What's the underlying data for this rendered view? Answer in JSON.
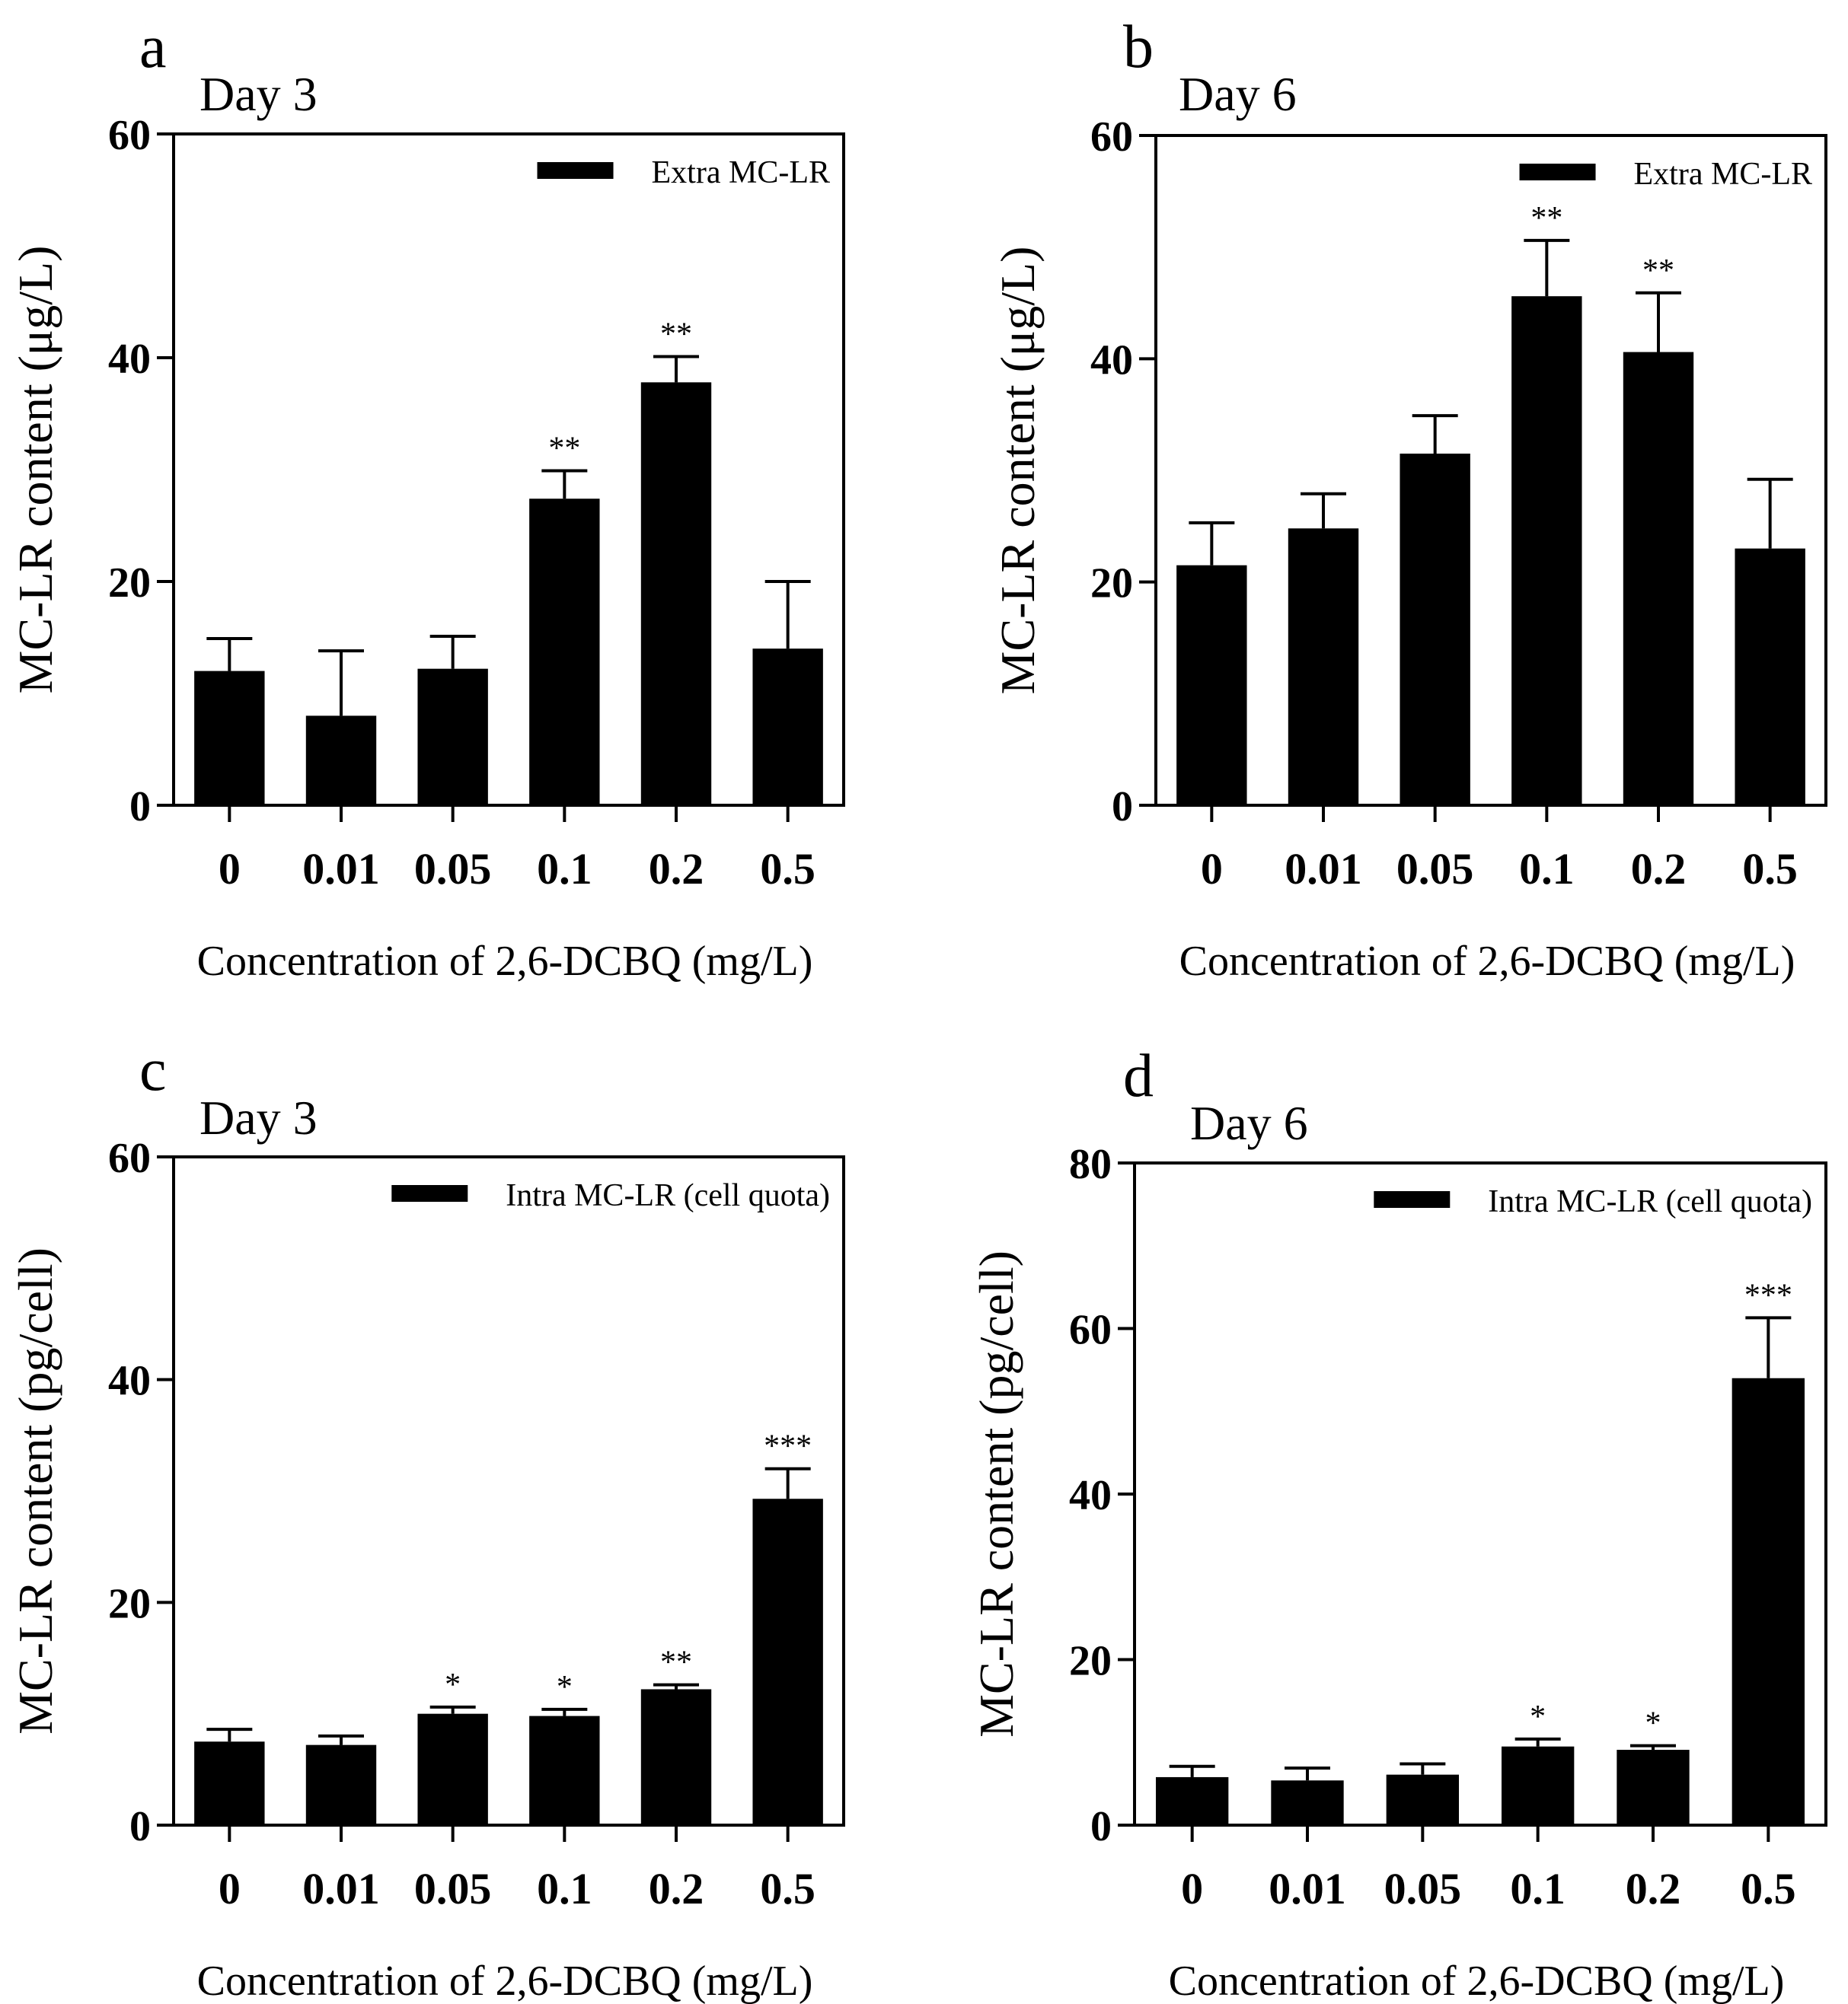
{
  "chart_data": [
    {
      "panel": "a",
      "type": "bar",
      "title": "Day 3",
      "xlabel": "Concentration of 2,6-DCBQ (mg/L)",
      "ylabel": "MC-LR content (μg/L)",
      "categories": [
        "0",
        "0.01",
        "0.05",
        "0.1",
        "0.2",
        "0.5"
      ],
      "series": [
        {
          "name": "Extra MC-LR",
          "values": [
            12,
            8,
            12.2,
            27.4,
            37.8,
            14
          ],
          "errors": [
            2.9,
            5.8,
            2.9,
            2.5,
            2.3,
            6
          ]
        }
      ],
      "significance": [
        "",
        "",
        "",
        "**",
        "**",
        ""
      ],
      "ylim": [
        0,
        60
      ],
      "yticks": [
        "0",
        "20",
        "40",
        "60"
      ],
      "legend_position": "top-right"
    },
    {
      "panel": "b",
      "type": "bar",
      "title": "Day 6",
      "xlabel": "Concentration of 2,6-DCBQ (mg/L)",
      "ylabel": "MC-LR content (μg/L)",
      "categories": [
        "0",
        "0.01",
        "0.05",
        "0.1",
        "0.2",
        "0.5"
      ],
      "series": [
        {
          "name": "Extra MC-LR",
          "values": [
            21.5,
            24.8,
            31.5,
            45.6,
            40.6,
            23
          ],
          "errors": [
            3.8,
            3.1,
            3.4,
            5,
            5.3,
            6.2
          ]
        }
      ],
      "significance": [
        "",
        "",
        "",
        "**",
        "**",
        ""
      ],
      "ylim": [
        0,
        60
      ],
      "yticks": [
        "0",
        "20",
        "40",
        "60"
      ],
      "legend_position": "top-right"
    },
    {
      "panel": "c",
      "type": "bar",
      "title": "Day 3",
      "xlabel": "Concentration of 2,6-DCBQ (mg/L)",
      "ylabel": "MC-LR content (pg/cell)",
      "categories": [
        "0",
        "0.01",
        "0.05",
        "0.1",
        "0.2",
        "0.5"
      ],
      "series": [
        {
          "name": "Intra MC-LR (cell quota)",
          "values": [
            7.5,
            7.2,
            10,
            9.8,
            12.2,
            29.3
          ],
          "errors": [
            1.1,
            0.8,
            0.6,
            0.6,
            0.4,
            2.7
          ]
        }
      ],
      "significance": [
        "",
        "",
        "*",
        "*",
        "**",
        "***"
      ],
      "ylim": [
        0,
        60
      ],
      "yticks": [
        "0",
        "20",
        "40",
        "60"
      ],
      "legend_position": "top-right"
    },
    {
      "panel": "d",
      "type": "bar",
      "title": "Day 6",
      "xlabel": "Concentration of 2,6-DCBQ (mg/L)",
      "ylabel": "MC-LR content (pg/cell)",
      "categories": [
        "0",
        "0.01",
        "0.05",
        "0.1",
        "0.2",
        "0.5"
      ],
      "series": [
        {
          "name": "Intra MC-LR (cell quota)",
          "values": [
            5.8,
            5.4,
            6.1,
            9.5,
            9.1,
            54
          ],
          "errors": [
            1.3,
            1.5,
            1.3,
            0.9,
            0.5,
            7.3
          ]
        }
      ],
      "significance": [
        "",
        "",
        "",
        "*",
        "*",
        "***"
      ],
      "ylim": [
        0,
        80
      ],
      "yticks": [
        "0",
        "20",
        "40",
        "60",
        "80"
      ],
      "legend_position": "top-right"
    }
  ]
}
